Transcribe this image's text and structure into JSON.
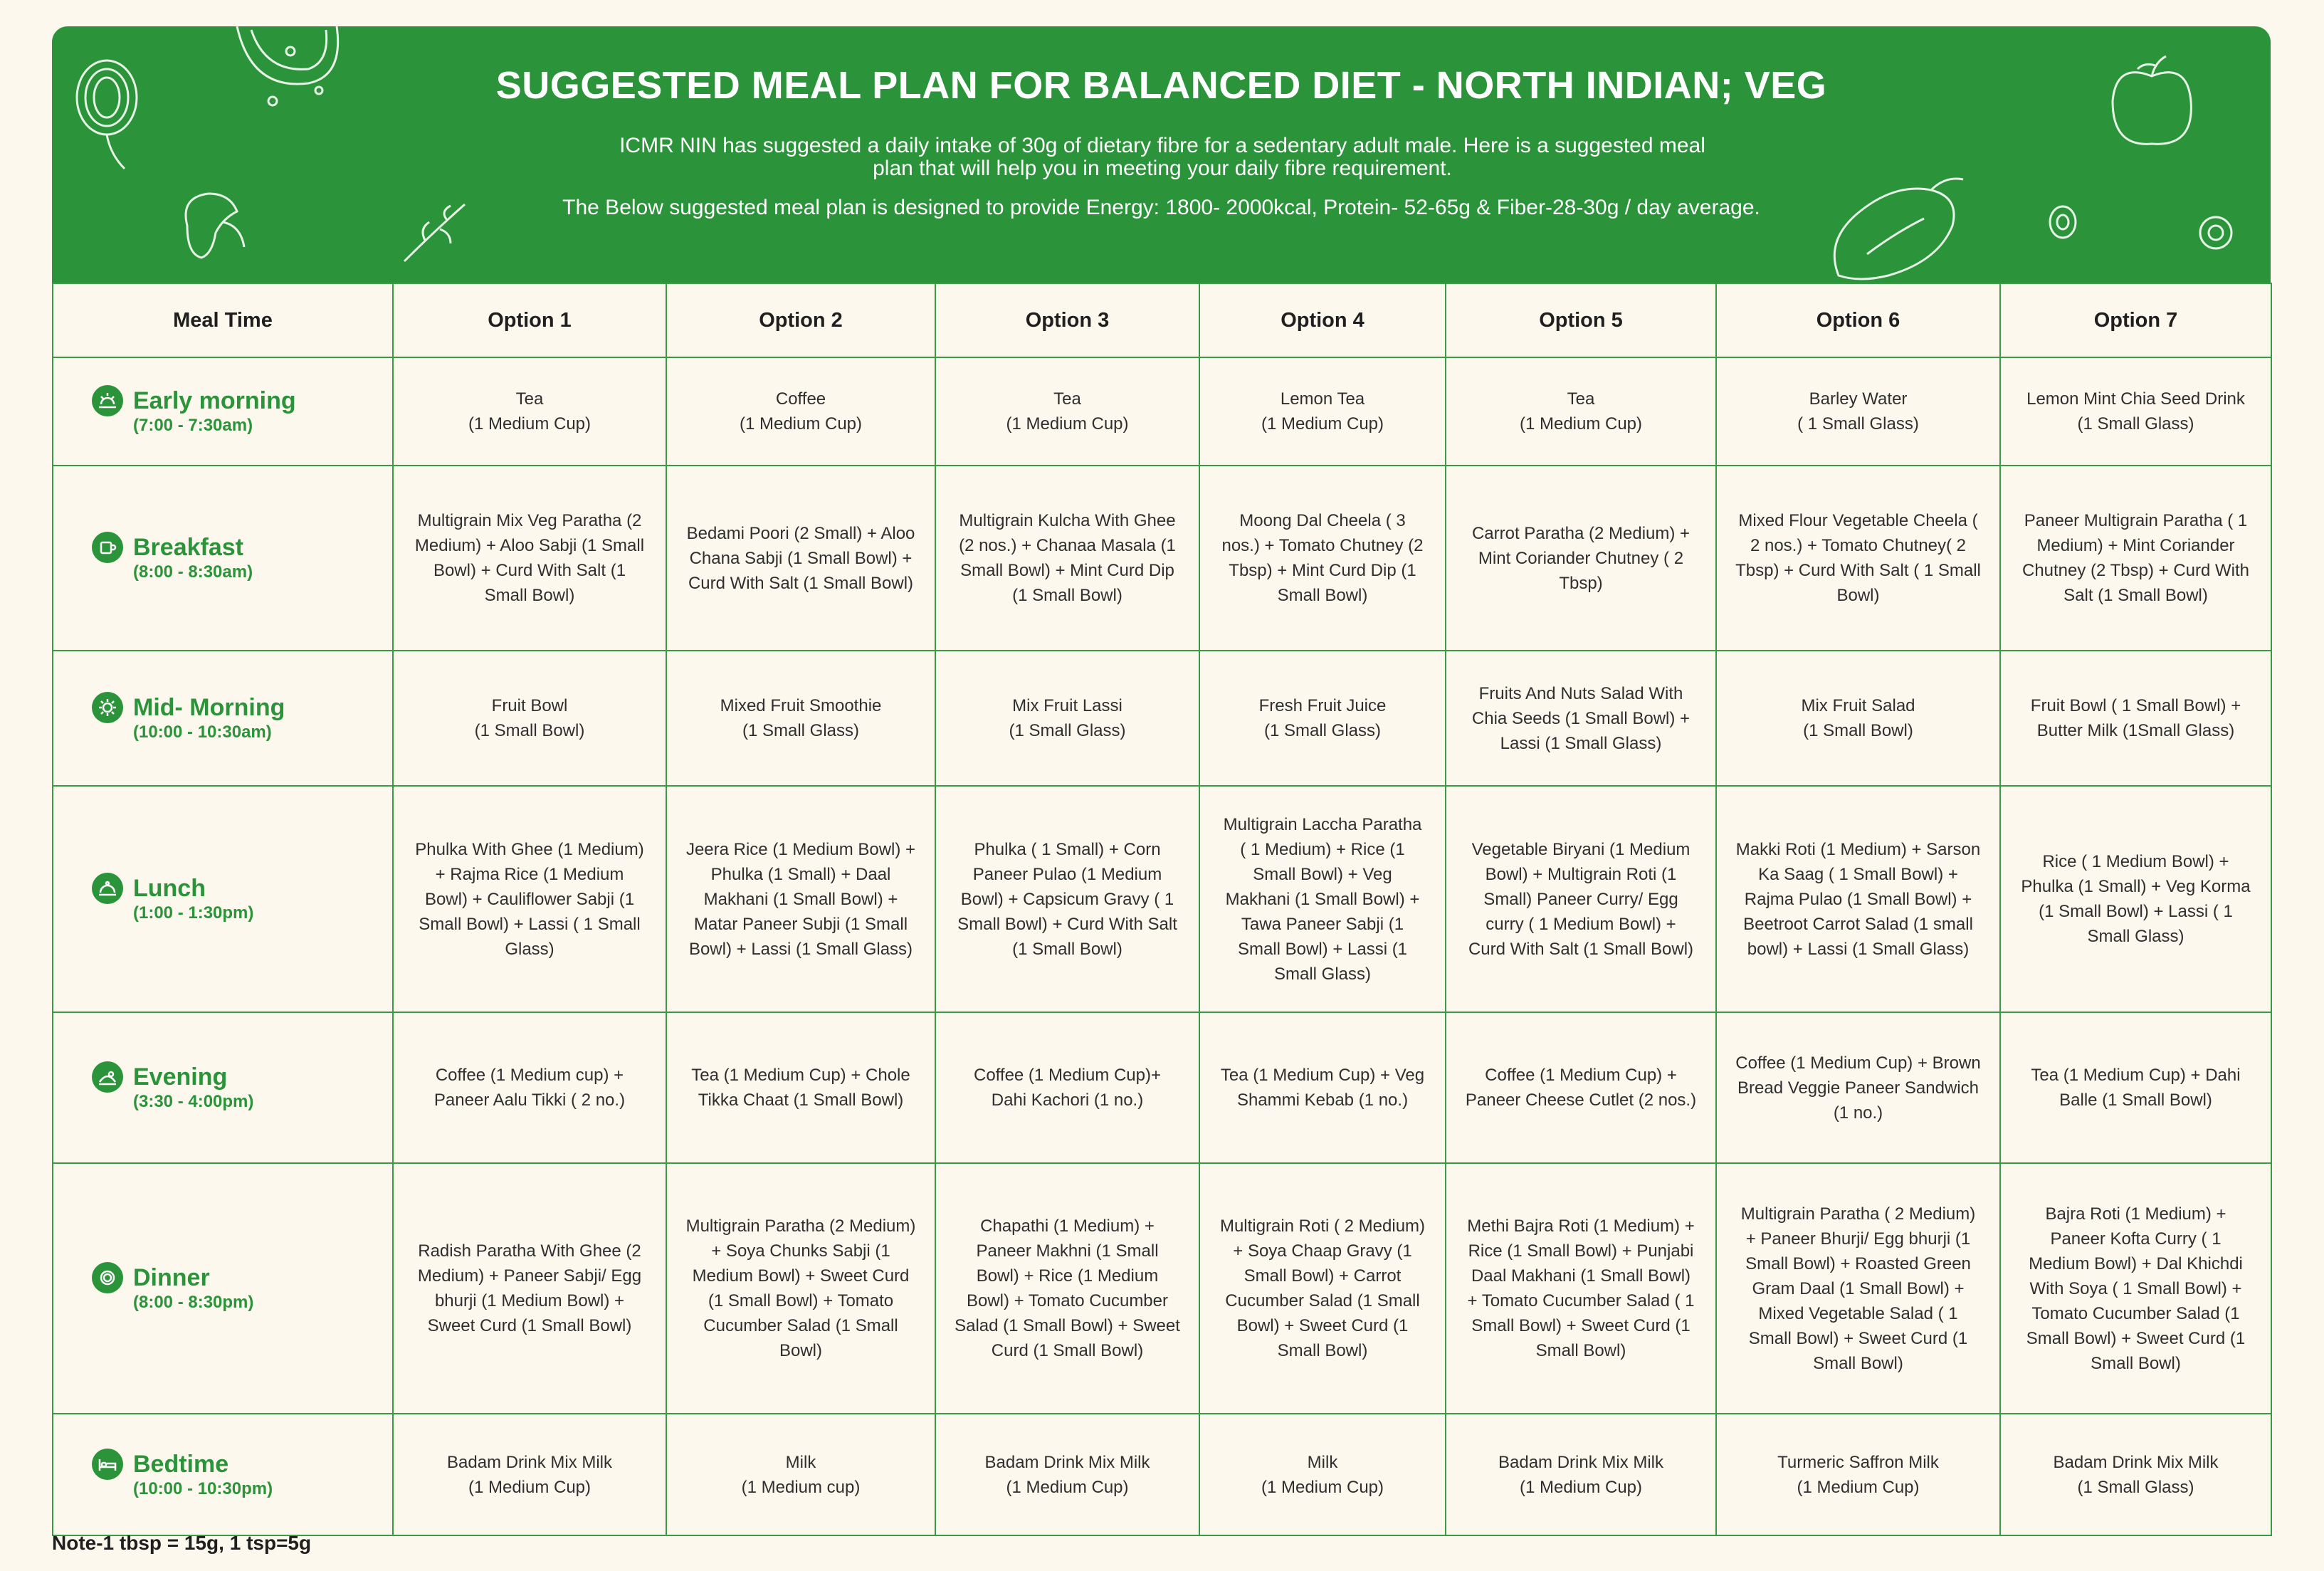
{
  "header": {
    "title": "SUGGESTED MEAL PLAN FOR BALANCED DIET - NORTH INDIAN; VEG",
    "intro": "ICMR NIN has suggested a daily intake of 30g of dietary fibre for a sedentary adult male. Here is a suggested meal plan that will help you in meeting your daily fibre requirement.",
    "targets": "The Below suggested meal plan is designed to provide Energy: 1800- 2000kcal, Protein- 52-65g & Fiber-28-30g / day average."
  },
  "colors": {
    "brand_green": "#2b9339",
    "background": "#fdf8ee",
    "grid": "#3a9a45"
  },
  "table": {
    "headers": [
      "Meal Time",
      "Option 1",
      "Option 2",
      "Option 3",
      "Option 4",
      "Option 5",
      "Option 6",
      "Option 7"
    ],
    "rows": [
      {
        "meal": "Early morning",
        "time": "(7:00 - 7:30am)",
        "icon": "sunrise-icon",
        "options": [
          "Tea\n(1 Medium Cup)",
          "Coffee\n(1 Medium Cup)",
          "Tea\n(1 Medium Cup)",
          "Lemon Tea\n(1 Medium Cup)",
          "Tea\n(1 Medium Cup)",
          "Barley Water\n( 1 Small Glass)",
          "Lemon Mint Chia Seed Drink\n(1 Small Glass)"
        ]
      },
      {
        "meal": "Breakfast",
        "time": "(8:00 - 8:30am)",
        "icon": "coffee-cup-icon",
        "options": [
          "Multigrain Mix Veg Paratha (2 Medium) + Aloo Sabji (1 Small Bowl) + Curd With Salt (1 Small Bowl)",
          "Bedami Poori  (2 Small) + Aloo Chana Sabji (1 Small Bowl) + Curd With Salt (1 Small Bowl)",
          "Multigrain Kulcha With Ghee (2 nos.) + Chanaa Masala (1 Small Bowl) + Mint Curd Dip (1 Small Bowl)",
          "Moong Dal Cheela ( 3 nos.) + Tomato Chutney (2 Tbsp) + Mint Curd Dip (1 Small Bowl)",
          "Carrot Paratha  (2 Medium) + Mint Coriander Chutney ( 2 Tbsp)",
          "Mixed Flour Vegetable Cheela ( 2 nos.) + Tomato Chutney( 2 Tbsp) + Curd With Salt ( 1 Small Bowl)",
          "Paneer Multigrain Paratha ( 1 Medium) + Mint Coriander Chutney (2 Tbsp) + Curd With Salt (1 Small Bowl)"
        ]
      },
      {
        "meal": "Mid- Morning",
        "time": "(10:00 - 10:30am)",
        "icon": "sun-icon",
        "options": [
          "Fruit Bowl\n(1 Small Bowl)",
          "Mixed Fruit Smoothie\n(1 Small Glass)",
          "Mix Fruit Lassi\n(1 Small Glass)",
          "Fresh Fruit Juice\n(1 Small Glass)",
          "Fruits And Nuts Salad With Chia Seeds (1 Small Bowl) + Lassi (1 Small Glass)",
          "Mix Fruit Salad\n(1 Small Bowl)",
          "Fruit Bowl ( 1 Small Bowl) + Butter Milk (1Small Glass)"
        ]
      },
      {
        "meal": "Lunch",
        "time": "(1:00 - 1:30pm)",
        "icon": "food-cloche-icon",
        "options": [
          "Phulka With Ghee  (1 Medium) + Rajma Rice (1 Medium Bowl)  + Cauliflower Sabji (1 Small Bowl) + Lassi ( 1 Small Glass)",
          "Jeera Rice (1 Medium Bowl) + Phulka (1 Small) + Daal Makhani (1 Small Bowl) + Matar Paneer Subji (1 Small Bowl)  + Lassi (1 Small Glass)",
          "Phulka ( 1 Small) + Corn Paneer Pulao (1 Medium Bowl) + Capsicum Gravy ( 1 Small Bowl) + Curd With Salt (1 Small Bowl)",
          "Multigrain Laccha Paratha ( 1 Medium) + Rice (1 Small Bowl) + Veg Makhani (1 Small Bowl) + Tawa Paneer Sabji (1 Small Bowl) + Lassi (1 Small Glass)",
          "Vegetable Biryani (1 Medium Bowl) + Multigrain Roti  (1 Small) Paneer Curry/ Egg curry ( 1 Medium Bowl) + Curd With Salt (1 Small Bowl)",
          "Makki Roti  (1 Medium) + Sarson Ka Saag ( 1 Small Bowl) + Rajma Pulao (1 Small Bowl)  + Beetroot Carrot Salad (1 small bowl) + Lassi  (1 Small Glass)",
          "Rice ( 1 Medium Bowl) + Phulka (1 Small) + Veg Korma (1 Small Bowl) + Lassi ( 1 Small Glass)"
        ]
      },
      {
        "meal": "Evening",
        "time": "(3:30 - 4:00pm)",
        "icon": "sunset-icon",
        "options": [
          "Coffee (1 Medium cup) + Paneer Aalu Tikki ( 2 no.)",
          "Tea  (1 Medium Cup) + Chole Tikka Chaat (1 Small Bowl)",
          "Coffee (1 Medium Cup)+ Dahi Kachori (1 no.)",
          "Tea (1 Medium Cup) + Veg Shammi Kebab (1 no.)",
          "Coffee (1 Medium Cup) + Paneer Cheese Cutlet (2 nos.)",
          "Coffee (1 Medium Cup) + Brown Bread Veggie Paneer Sandwich (1 no.)",
          "Tea (1 Medium Cup) + Dahi Balle (1 Small Bowl)"
        ]
      },
      {
        "meal": "Dinner",
        "time": "(8:00 - 8:30pm)",
        "icon": "plate-icon",
        "options": [
          "Radish Paratha With Ghee (2 Medium) + Paneer Sabji/ Egg bhurji (1 Medium Bowl)  + Sweet Curd (1 Small Bowl)",
          "Multigrain Paratha (2 Medium) + Soya Chunks Sabji  (1 Medium Bowl) + Sweet Curd  (1 Small Bowl) + Tomato Cucumber Salad (1 Small Bowl)",
          "Chapathi  (1 Medium) + Paneer Makhni (1 Small Bowl) +  Rice (1 Medium Bowl) + Tomato Cucumber Salad (1 Small Bowl) + Sweet Curd  (1 Small Bowl)",
          "Multigrain Roti ( 2 Medium) + Soya Chaap Gravy (1 Small Bowl) + Carrot Cucumber Salad (1 Small Bowl) + Sweet Curd (1 Small Bowl)",
          "Methi Bajra Roti (1 Medium) + Rice (1 Small Bowl) + Punjabi Daal Makhani (1 Small Bowl) + Tomato Cucumber Salad ( 1 Small Bowl) + Sweet Curd (1 Small Bowl)",
          "Multigrain Paratha ( 2 Medium) + Paneer Bhurji/ Egg bhurji (1 Small Bowl) + Roasted Green Gram Daal (1 Small Bowl) + Mixed Vegetable Salad ( 1 Small Bowl) + Sweet Curd (1 Small Bowl)",
          "Bajra Roti (1 Medium) + Paneer Kofta Curry ( 1 Medium Bowl) + Dal Khichdi With Soya ( 1 Small Bowl) + Tomato Cucumber Salad (1 Small Bowl) + Sweet Curd (1 Small Bowl)"
        ]
      },
      {
        "meal": "Bedtime",
        "time": "(10:00 - 10:30pm)",
        "icon": "bed-icon",
        "options": [
          "Badam Drink Mix Milk\n(1 Medium Cup)",
          "Milk\n(1 Medium cup)",
          "Badam Drink Mix Milk\n(1 Medium Cup)",
          "Milk\n(1 Medium Cup)",
          "Badam Drink Mix Milk\n(1 Medium Cup)",
          "Turmeric Saffron Milk\n(1 Medium Cup)",
          "Badam Drink Mix Milk\n(1 Small Glass)"
        ]
      }
    ]
  },
  "note": "Note-1 tbsp = 15g, 1 tsp=5g"
}
